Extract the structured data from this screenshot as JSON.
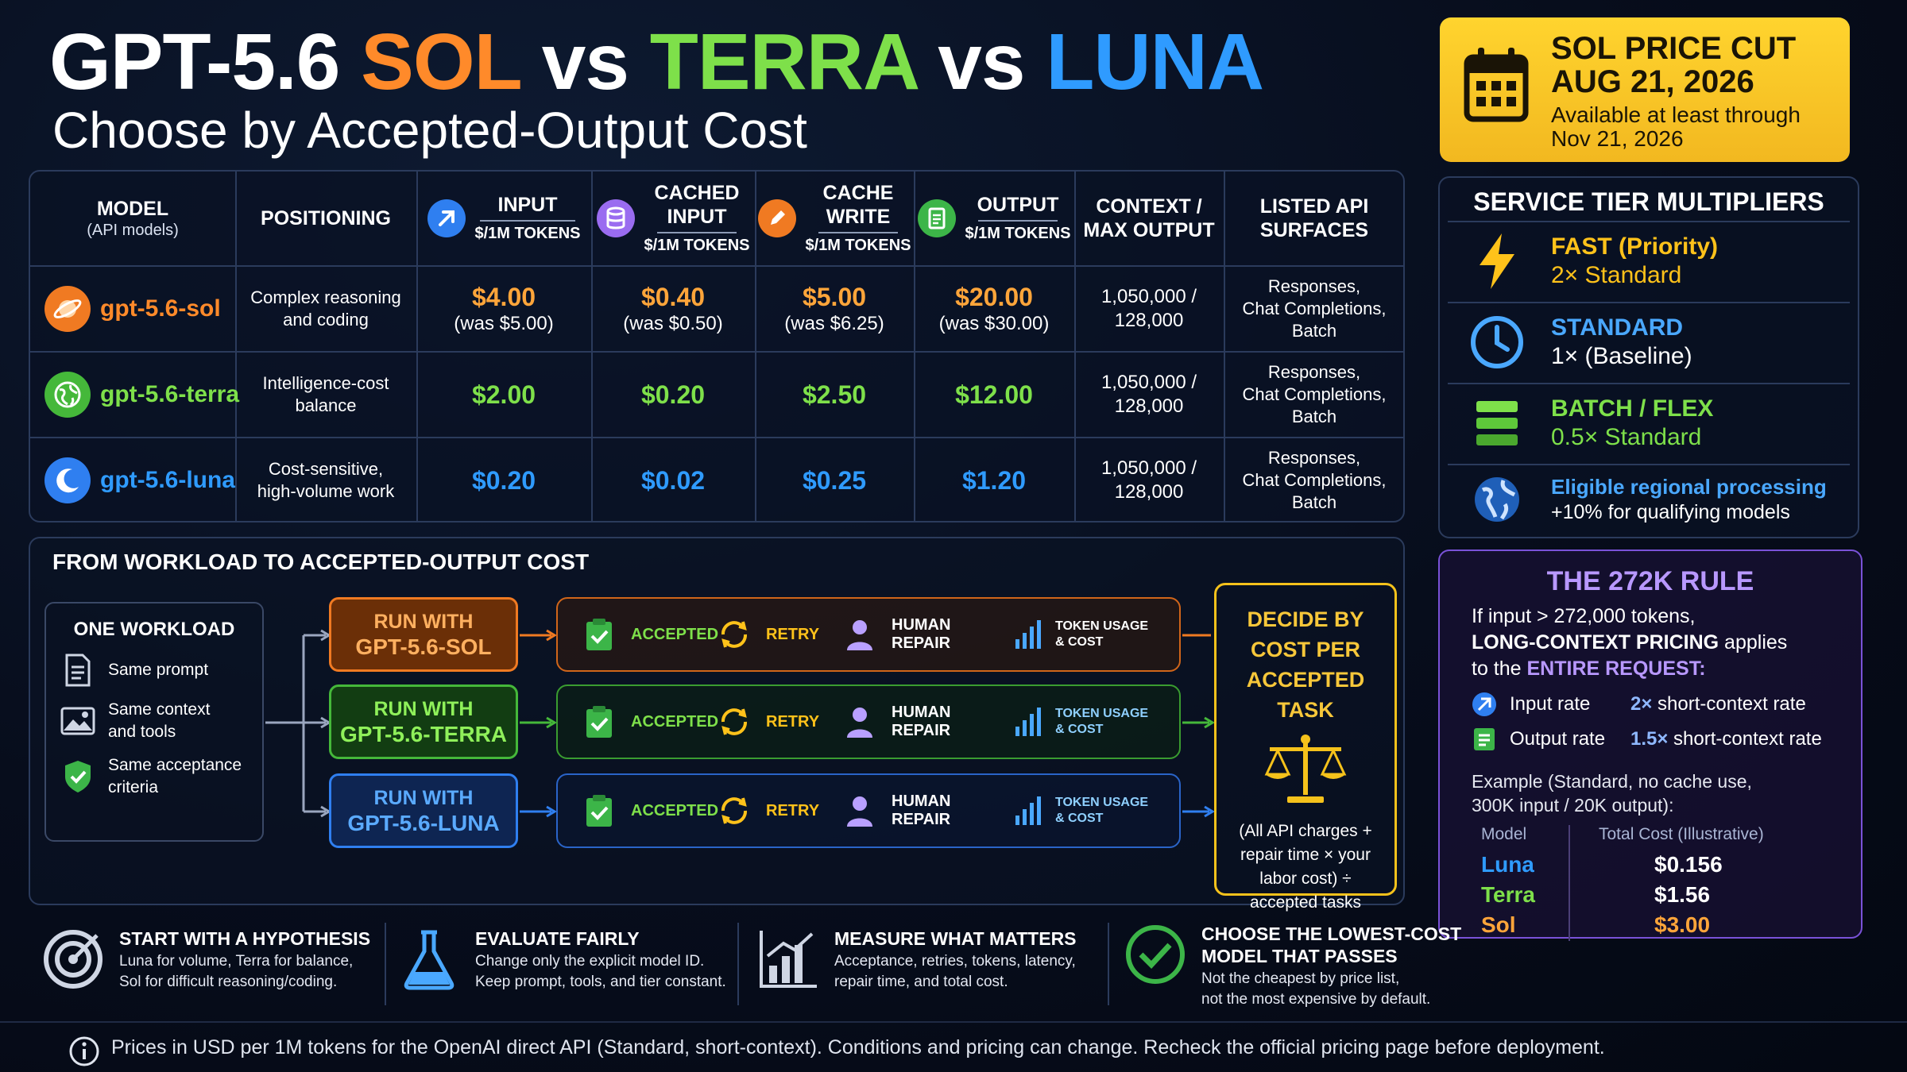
{
  "title": {
    "model": "GPT-5.6",
    "sol": "SOL",
    "vs": "vs",
    "terra": "TERRA",
    "luna": "LUNA",
    "subtitle": "Choose by Accepted-Output Cost"
  },
  "price_cut": {
    "line1": "SOL PRICE CUT",
    "line2": "AUG 21, 2026",
    "line3": "Available at least through",
    "line4": "Nov 21, 2026"
  },
  "table": {
    "headers": {
      "model": "MODEL",
      "model_sub": "(API models)",
      "positioning": "POSITIONING",
      "input": "INPUT",
      "cached_1": "CACHED",
      "cached_2": "INPUT",
      "cache_write_1": "CACHE",
      "cache_write_2": "WRITE",
      "output": "OUTPUT",
      "per_tokens": "$/1M TOKENS",
      "context_1": "CONTEXT /",
      "context_2": "MAX OUTPUT",
      "surfaces_1": "LISTED API",
      "surfaces_2": "SURFACES"
    },
    "rows": [
      {
        "name": "gpt-5.6-sol",
        "pos1": "Complex reasoning",
        "pos2": "and coding",
        "input": "$4.00",
        "input_was": "(was $5.00)",
        "cached": "$0.40",
        "cached_was": "(was $0.50)",
        "cache_write": "$5.00",
        "cache_write_was": "(was $6.25)",
        "output": "$20.00",
        "output_was": "(was $30.00)",
        "context1": "1,050,000 /",
        "context2": "128,000",
        "s1": "Responses,",
        "s2": "Chat Completions,",
        "s3": "Batch"
      },
      {
        "name": "gpt-5.6-terra",
        "pos1": "Intelligence-cost",
        "pos2": "balance",
        "input": "$2.00",
        "cached": "$0.20",
        "cache_write": "$2.50",
        "output": "$12.00",
        "context1": "1,050,000 /",
        "context2": "128,000",
        "s1": "Responses,",
        "s2": "Chat Completions,",
        "s3": "Batch"
      },
      {
        "name": "gpt-5.6-luna",
        "pos1": "Cost-sensitive,",
        "pos2": "high-volume work",
        "input": "$0.20",
        "cached": "$0.02",
        "cache_write": "$0.25",
        "output": "$1.20",
        "context1": "1,050,000 /",
        "context2": "128,000",
        "s1": "Responses,",
        "s2": "Chat Completions,",
        "s3": "Batch"
      }
    ]
  },
  "tiers": {
    "title": "SERVICE TIER MULTIPLIERS",
    "items": [
      {
        "name": "FAST (Priority)",
        "desc": "2× Standard",
        "color": "#ffc21a",
        "icon": "lightning-icon"
      },
      {
        "name": "STANDARD",
        "desc": "1× (Baseline)",
        "color": "#4aa8ff",
        "icon": "clock-icon"
      },
      {
        "name": "BATCH / FLEX",
        "desc": "0.5× Standard",
        "color": "#7ee04a",
        "icon": "stack-icon"
      },
      {
        "name": "Eligible regional processing",
        "desc": "+10% for qualifying models",
        "color": "#4aa8ff",
        "icon": "globe-icon"
      }
    ]
  },
  "rule272": {
    "title": "THE 272K RULE",
    "line1": "If input > 272,000 tokens,",
    "line2_bold": "LONG-CONTEXT PRICING",
    "line2_rest": " applies",
    "line3_pre": "to the ",
    "line3_em": "ENTIRE REQUEST:",
    "input_label": "Input rate",
    "input_mult": "2×",
    "input_rest": " short-context rate",
    "output_label": "Output rate",
    "output_mult": "1.5×",
    "output_rest": " short-context rate",
    "example1": "Example (Standard, no cache use,",
    "example2": "300K input / 20K output):",
    "col_model": "Model",
    "col_cost": "Total Cost (Illustrative)",
    "rows": [
      {
        "model": "Luna",
        "cost": "$0.156"
      },
      {
        "model": "Terra",
        "cost": "$1.56"
      },
      {
        "model": "Sol",
        "cost": "$3.00"
      }
    ]
  },
  "flow": {
    "title": "FROM WORKLOAD TO ACCEPTED-OUTPUT COST",
    "workload_title": "ONE WORKLOAD",
    "workload_items": [
      {
        "text1": "Same prompt",
        "text2": ""
      },
      {
        "text1": "Same context",
        "text2": "and tools"
      },
      {
        "text1": "Same acceptance",
        "text2": "criteria"
      }
    ],
    "runs": [
      {
        "l1": "RUN WITH",
        "l2": "GPT-5.6-SOL"
      },
      {
        "l1": "RUN WITH",
        "l2": "GPT-5.6-TERRA"
      },
      {
        "l1": "RUN WITH",
        "l2": "GPT-5.6-LUNA"
      }
    ],
    "steps": {
      "accepted": "ACCEPTED",
      "retry": "RETRY",
      "human": "HUMAN REPAIR",
      "usage1": "TOKEN USAGE",
      "usage2": "& COST"
    },
    "decide_title1": "DECIDE BY",
    "decide_title2": "COST PER",
    "decide_title3": "ACCEPTED TASK",
    "decide_d1": "(All API charges +",
    "decide_d2": "repair time × your",
    "decide_d3": "labor cost) ÷",
    "decide_d4": "accepted tasks"
  },
  "tips": [
    {
      "title": "START WITH A HYPOTHESIS",
      "title2": "",
      "d1": "Luna for volume, Terra for balance,",
      "d2": "Sol for difficult reasoning/coding."
    },
    {
      "title": "EVALUATE FAIRLY",
      "title2": "",
      "d1": "Change only the explicit model ID.",
      "d2": "Keep prompt, tools, and tier constant."
    },
    {
      "title": "MEASURE WHAT MATTERS",
      "title2": "",
      "d1": "Acceptance, retries, tokens, latency,",
      "d2": "repair time, and total cost."
    },
    {
      "title": "CHOOSE THE LOWEST-COST",
      "title2": "MODEL THAT PASSES",
      "d1": "Not the cheapest by price list,",
      "d2": "not the most expensive by default."
    }
  ],
  "footer": "Prices in USD per 1M tokens for the OpenAI direct API (Standard, short-context). Conditions and pricing can change. Recheck the official pricing page before deployment.",
  "colors": {
    "sol": "#ff8a2a",
    "terra": "#7ee04a",
    "luna": "#2f9bff",
    "gold": "#f5c21b",
    "purple": "#b898ff"
  }
}
